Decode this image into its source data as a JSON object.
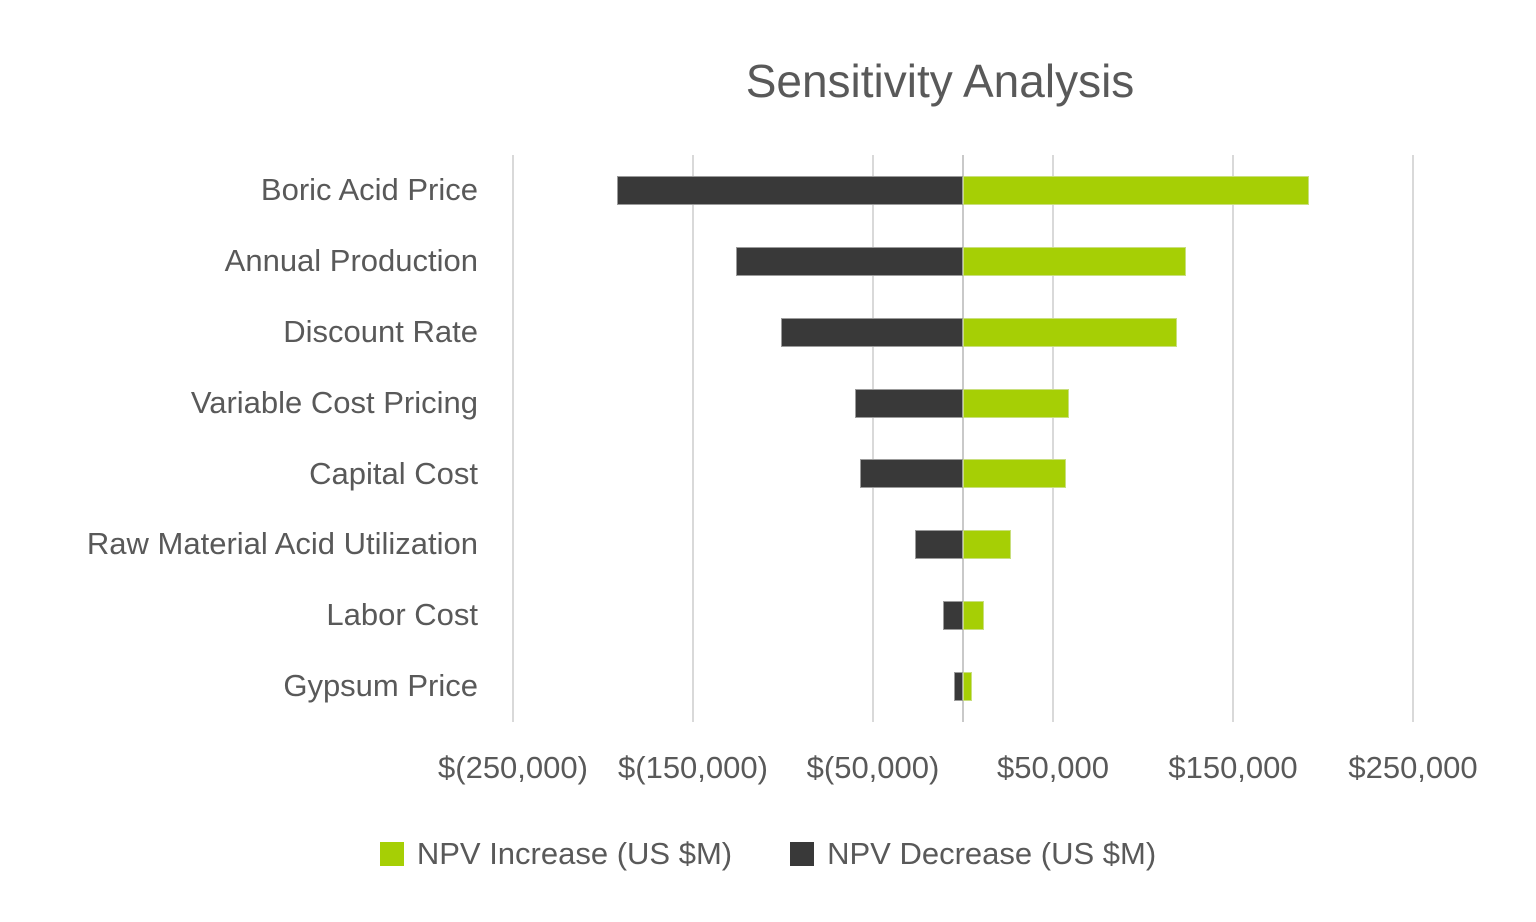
{
  "title": "Sensitivity Analysis",
  "colors": {
    "increase": "#A6CF05",
    "increase_border": "#C9DF7E",
    "decrease": "#393939",
    "decrease_border": "#9B9B9B",
    "text": "#595959",
    "gridline": "#D9D9D9",
    "zero_line": "#C9C9C9",
    "background": "#FFFFFF"
  },
  "chart_data": {
    "type": "bar",
    "orientation": "horizontal-tornado",
    "title": "Sensitivity Analysis",
    "categories": [
      "Boric Acid Price",
      "Annual Production",
      "Discount Rate",
      "Variable Cost Pricing",
      "Capital Cost",
      "Raw Material Acid Utilization",
      "Labor Cost",
      "Gypsum Price"
    ],
    "series": [
      {
        "name": "NPV Increase (US $M)",
        "color": "#A6CF05",
        "values": [
          192000,
          124000,
          119000,
          59000,
          57000,
          26500,
          11500,
          5000
        ]
      },
      {
        "name": "NPV Decrease (US $M)",
        "color": "#393939",
        "values": [
          -192000,
          -126000,
          -101000,
          -60000,
          -57000,
          -26500,
          -11000,
          -5000
        ]
      }
    ],
    "xlim": [
      -250000,
      250000
    ],
    "x_ticks": [
      -250000,
      -150000,
      -50000,
      50000,
      150000,
      250000
    ],
    "x_tick_labels": [
      "$(250,000)",
      "$(150,000)",
      "$(50,000)",
      "$50,000",
      "$150,000",
      "$250,000"
    ],
    "grid": true,
    "zero_axis_line": true,
    "legend_position": "bottom",
    "xlabel": "",
    "ylabel": ""
  }
}
